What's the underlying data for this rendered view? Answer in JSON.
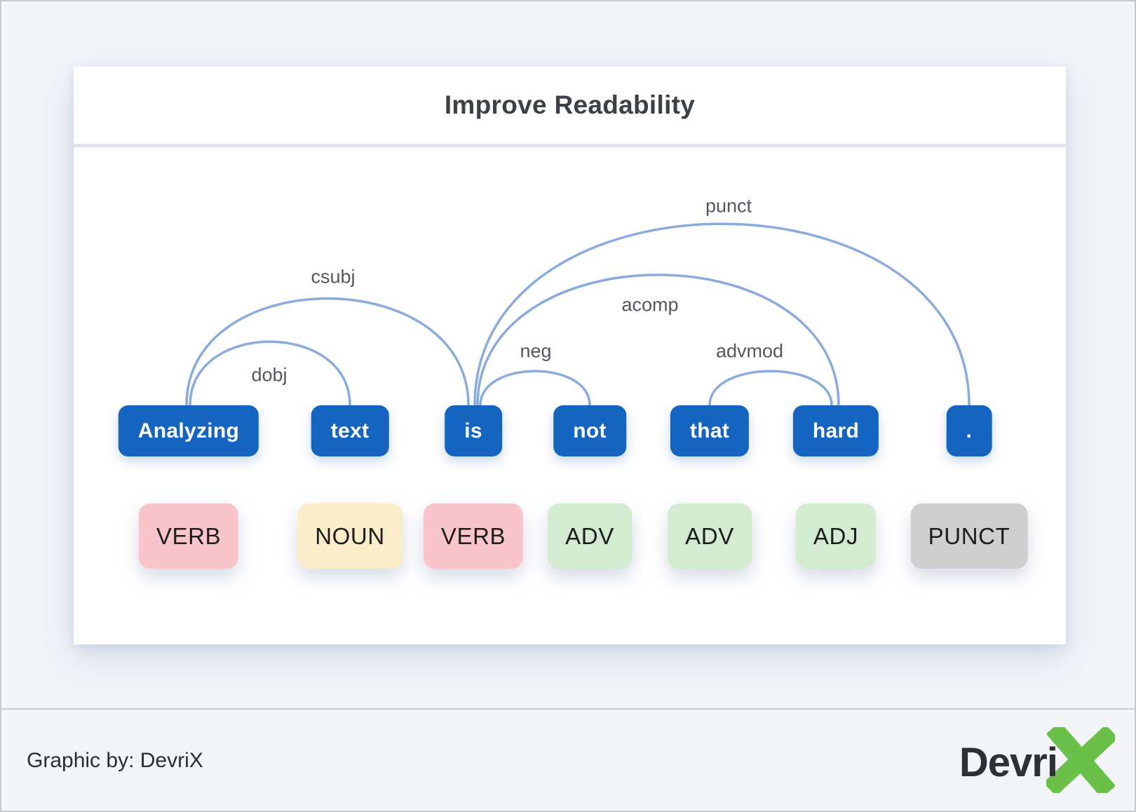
{
  "title": "Improve Readability",
  "sentence": "Analyzing text is not that hard .",
  "words": [
    {
      "text": "Analyzing",
      "pos": "VERB"
    },
    {
      "text": "text",
      "pos": "NOUN"
    },
    {
      "text": "is",
      "pos": "VERB"
    },
    {
      "text": "not",
      "pos": "ADV"
    },
    {
      "text": "that",
      "pos": "ADV"
    },
    {
      "text": "hard",
      "pos": "ADJ"
    },
    {
      "text": ".",
      "pos": "PUNCT"
    }
  ],
  "arcs": [
    {
      "label": "dobj",
      "from": 0,
      "to": 1
    },
    {
      "label": "csubj",
      "from": 0,
      "to": 2
    },
    {
      "label": "neg",
      "from": 2,
      "to": 3
    },
    {
      "label": "acomp",
      "from": 2,
      "to": 5
    },
    {
      "label": "advmod",
      "from": 4,
      "to": 5
    },
    {
      "label": "punct",
      "from": 2,
      "to": 6
    }
  ],
  "pos_colors": {
    "VERB": "#f8c5cb",
    "NOUN": "#faecc8",
    "ADV": "#d3ebd0",
    "ADJ": "#d3ebd0",
    "PUNCT": "#cfcfd0"
  },
  "colors": {
    "word_box": "#1565c0",
    "word_text": "#ffffff",
    "arc": "#8aabdd",
    "arc_label": "#54575d",
    "logo_green": "#6bc04a"
  },
  "footer": {
    "credit": "Graphic by: DevriX",
    "logo_text": "Devri",
    "logo_x": "X"
  }
}
